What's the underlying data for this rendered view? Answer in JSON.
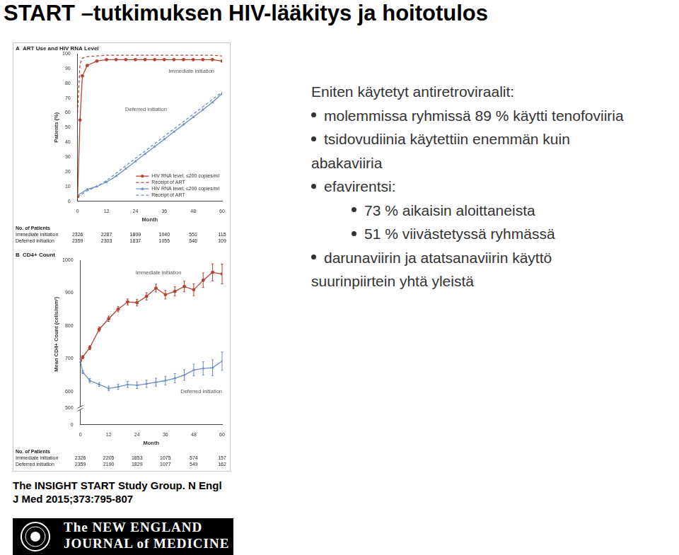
{
  "title": "START –tutkimuksen HIV-lääkitys ja hoitotulos",
  "chart_data": [
    {
      "type": "line",
      "panel": "A",
      "title": "ART Use and HIV RNA Level",
      "x_label": "Month",
      "y_label": "Patients (%)",
      "xlim": [
        0,
        60
      ],
      "xticks": [
        0,
        12,
        24,
        36,
        48,
        60
      ],
      "ylim": [
        0,
        100
      ],
      "yticks": [
        0,
        10,
        20,
        30,
        40,
        50,
        60,
        70,
        80,
        90,
        100
      ],
      "grid": false,
      "legend": "lower right",
      "annotations": [
        "Immediate initiation",
        "Deferred initiation"
      ],
      "series": [
        {
          "name": "HIV RNA level, ≤200 copies/ml",
          "color": "#b5432f",
          "marker": "circle",
          "line_style": "solid",
          "x": [
            0,
            1,
            2,
            4,
            8,
            12,
            16,
            20,
            24,
            28,
            32,
            36,
            40,
            44,
            48,
            52,
            56,
            60
          ],
          "values": [
            3,
            55,
            85,
            92,
            95,
            96,
            96,
            96,
            96,
            96,
            96,
            96,
            96,
            96,
            96,
            96,
            96,
            95
          ]
        },
        {
          "name": "Receipt of ART",
          "color": "#b5432f",
          "marker": "none",
          "line_style": "dashed",
          "x": [
            0,
            1,
            2,
            4,
            8,
            12,
            16,
            20,
            24,
            28,
            32,
            36,
            40,
            44,
            48,
            52,
            56,
            60
          ],
          "values": [
            60,
            93,
            97,
            98,
            98.5,
            99,
            99,
            99,
            99,
            99,
            99,
            99,
            99,
            99,
            99,
            99,
            99,
            98.5
          ]
        },
        {
          "name": "HIV RNA level, ≤200 copies/ml",
          "color": "#6b8cc7",
          "marker": "triangle",
          "line_style": "solid",
          "x": [
            0,
            4,
            8,
            12,
            16,
            20,
            24,
            28,
            32,
            36,
            40,
            44,
            48,
            52,
            56,
            60
          ],
          "values": [
            4,
            8,
            10,
            13,
            17,
            22,
            27,
            32,
            37,
            42,
            47,
            52,
            57,
            62,
            67,
            73
          ]
        },
        {
          "name": "Receipt of ART",
          "color": "#6b8cc7",
          "marker": "none",
          "line_style": "dashed",
          "x": [
            0,
            4,
            8,
            12,
            16,
            20,
            24,
            28,
            32,
            36,
            40,
            44,
            48,
            52,
            56,
            60
          ],
          "values": [
            3,
            7,
            10,
            14,
            19,
            24,
            29,
            34,
            39,
            44,
            49,
            54,
            59,
            64,
            69,
            74
          ]
        }
      ],
      "patients_table": {
        "title": "No. of Patients",
        "rows": [
          {
            "name": "Immediate initiation",
            "values": [
              2326,
              2287,
              1809,
              1040,
              551,
              115
            ]
          },
          {
            "name": "Deferred initiation",
            "values": [
              2359,
              2303,
              1837,
              1055,
              546,
              109
            ]
          }
        ]
      }
    },
    {
      "type": "line",
      "panel": "B",
      "title": "CD4+ Count",
      "x_label": "Month",
      "y_label": "Mean CD4+ Count (cells/mm³)",
      "x": [
        0,
        1,
        4,
        8,
        12,
        16,
        20,
        24,
        28,
        32,
        36,
        40,
        44,
        48,
        52,
        56,
        60
      ],
      "xlim": [
        0,
        60
      ],
      "xticks": [
        0,
        12,
        24,
        36,
        48,
        60
      ],
      "ylim": [
        0,
        1000
      ],
      "yticks": [
        0,
        500,
        600,
        700,
        800,
        900,
        1000
      ],
      "grid": false,
      "annotations": [
        "Immediate initiation",
        "Deferred initiation"
      ],
      "series": [
        {
          "name": "Immediate initiation",
          "color": "#b5432f",
          "marker": "circle",
          "line_style": "solid",
          "values": [
            695,
            705,
            734,
            790,
            822,
            851,
            873,
            871,
            890,
            915,
            895,
            905,
            920,
            910,
            939,
            963,
            958
          ],
          "errors": [
            5,
            5,
            6,
            7,
            8,
            8,
            9,
            10,
            11,
            12,
            13,
            14,
            16,
            18,
            22,
            26,
            30
          ]
        },
        {
          "name": "Deferred initiation",
          "color": "#6b8cc7",
          "marker": "triangle",
          "line_style": "solid",
          "values": [
            695,
            660,
            634,
            622,
            610,
            615,
            622,
            620,
            624,
            629,
            634,
            641,
            651,
            666,
            671,
            673,
            693
          ],
          "errors": [
            5,
            5,
            6,
            6,
            7,
            8,
            9,
            10,
            11,
            12,
            13,
            14,
            16,
            18,
            20,
            24,
            28
          ]
        }
      ],
      "patients_table": {
        "title": "No. of Patients",
        "rows": [
          {
            "name": "Immediate initiation",
            "values": [
              2326,
              2205,
              1853,
              1075,
              574,
              157
            ]
          },
          {
            "name": "Deferred initiation",
            "values": [
              2359,
              2190,
              1829,
              1077,
              549,
              162
            ]
          }
        ]
      }
    }
  ],
  "text_block": {
    "items": [
      {
        "text": "Eniten käytetyt antiretroviraalit:",
        "level": 0
      },
      {
        "text": "molemmissa ryhmissä 89 % käytti tenofoviiria",
        "level": 1
      },
      {
        "text": "tsidovudiinia käytettiin enemmän kuin abakaviiria",
        "level": 1
      },
      {
        "text": "efavirentsi:",
        "level": 1
      },
      {
        "text": "73 % aikaisin aloittaneista",
        "level": 2
      },
      {
        "text": "51 % viivästetyssä ryhmässä",
        "level": 2
      },
      {
        "text": "darunaviirin ja atatsanaviirin käyttö suurinpiirtein yhtä yleistä",
        "level": 1
      }
    ]
  },
  "citation": "The INSIGHT START Study Group. N Engl J Med 2015;373:795-807",
  "logo": [
    "The NEW ENGLAND",
    "JOURNAL of MEDICINE"
  ]
}
